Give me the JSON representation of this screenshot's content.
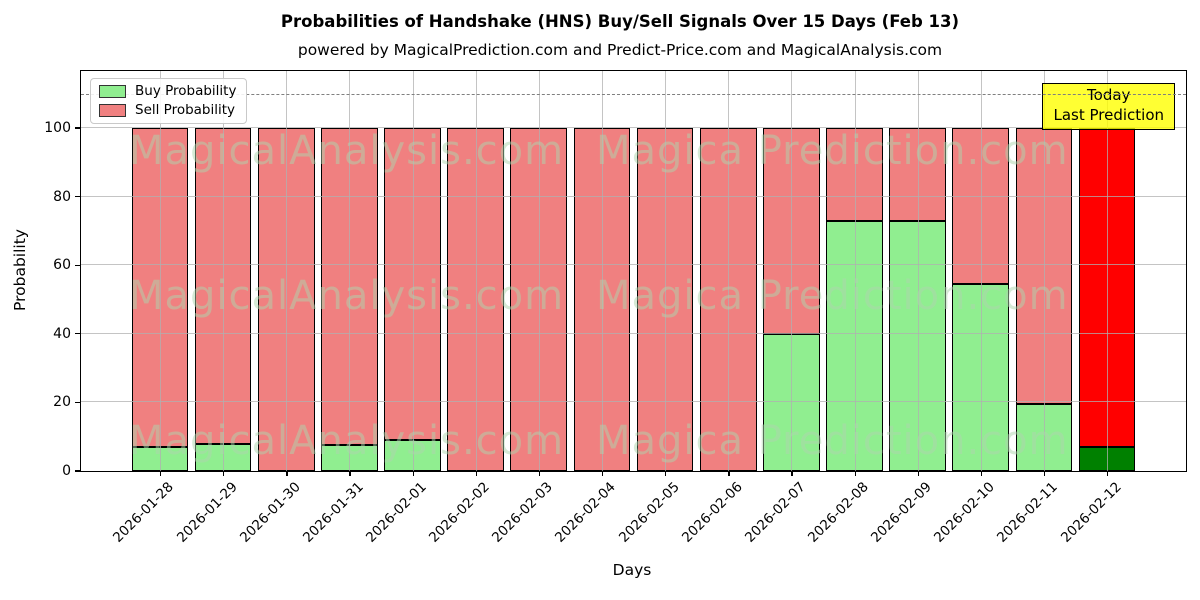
{
  "page": {
    "title": "Probabilities of Handshake (HNS) Buy/Sell Signals Over 15 Days (Feb 13)",
    "subtitle": "powered by MagicalPrediction.com and Predict-Price.com and MagicalAnalysis.com"
  },
  "axes": {
    "xlabel": "Days",
    "ylabel": "Probability"
  },
  "legend": {
    "items": [
      {
        "label": "Buy Probability",
        "color": "#90ee90"
      },
      {
        "label": "Sell Probability",
        "color": "#f08080"
      }
    ]
  },
  "annotation": {
    "line1": "Today",
    "line2": "Last Prediction",
    "bg_color": "#ffff00"
  },
  "watermarks": {
    "texts": [
      "MagicalAnalysis.com",
      "Magica Prediction.com"
    ],
    "color": "#aed6ae"
  },
  "chart_data": {
    "type": "bar",
    "stacked": true,
    "title": "Probabilities of Handshake (HNS) Buy/Sell Signals Over 15 Days (Feb 13)",
    "xlabel": "Days",
    "ylabel": "Probability",
    "categories": [
      "2026-01-28",
      "2026-01-29",
      "2026-01-30",
      "2026-01-31",
      "2026-02-01",
      "2026-02-02",
      "2026-02-03",
      "2026-02-04",
      "2026-02-05",
      "2026-02-06",
      "2026-02-07",
      "2026-02-08",
      "2026-02-09",
      "2026-02-10",
      "2026-02-11",
      "2026-02-12"
    ],
    "series": [
      {
        "name": "Buy Probability",
        "color": "#90ee90",
        "highlight_color": "#008000",
        "values": [
          7,
          8,
          0,
          7.5,
          9,
          0,
          0,
          0,
          0,
          0,
          40,
          73,
          73,
          54.5,
          19.5,
          7
        ]
      },
      {
        "name": "Sell Probability",
        "color": "#f08080",
        "highlight_color": "#ff0000",
        "values": [
          93,
          92,
          100,
          92.5,
          91,
          100,
          100,
          100,
          100,
          100,
          60,
          27,
          27,
          45.5,
          80.5,
          93
        ]
      }
    ],
    "highlight_index": 15,
    "yticks": [
      0,
      20,
      40,
      60,
      80,
      100
    ],
    "ylim": [
      0,
      116.6
    ],
    "xlim": [
      -1.25,
      16.25
    ],
    "dashed_line_y": 110,
    "grid": true,
    "legend_position": "upper left",
    "bar_edge_color": "#000000",
    "grid_color": "#b0b0b0"
  }
}
